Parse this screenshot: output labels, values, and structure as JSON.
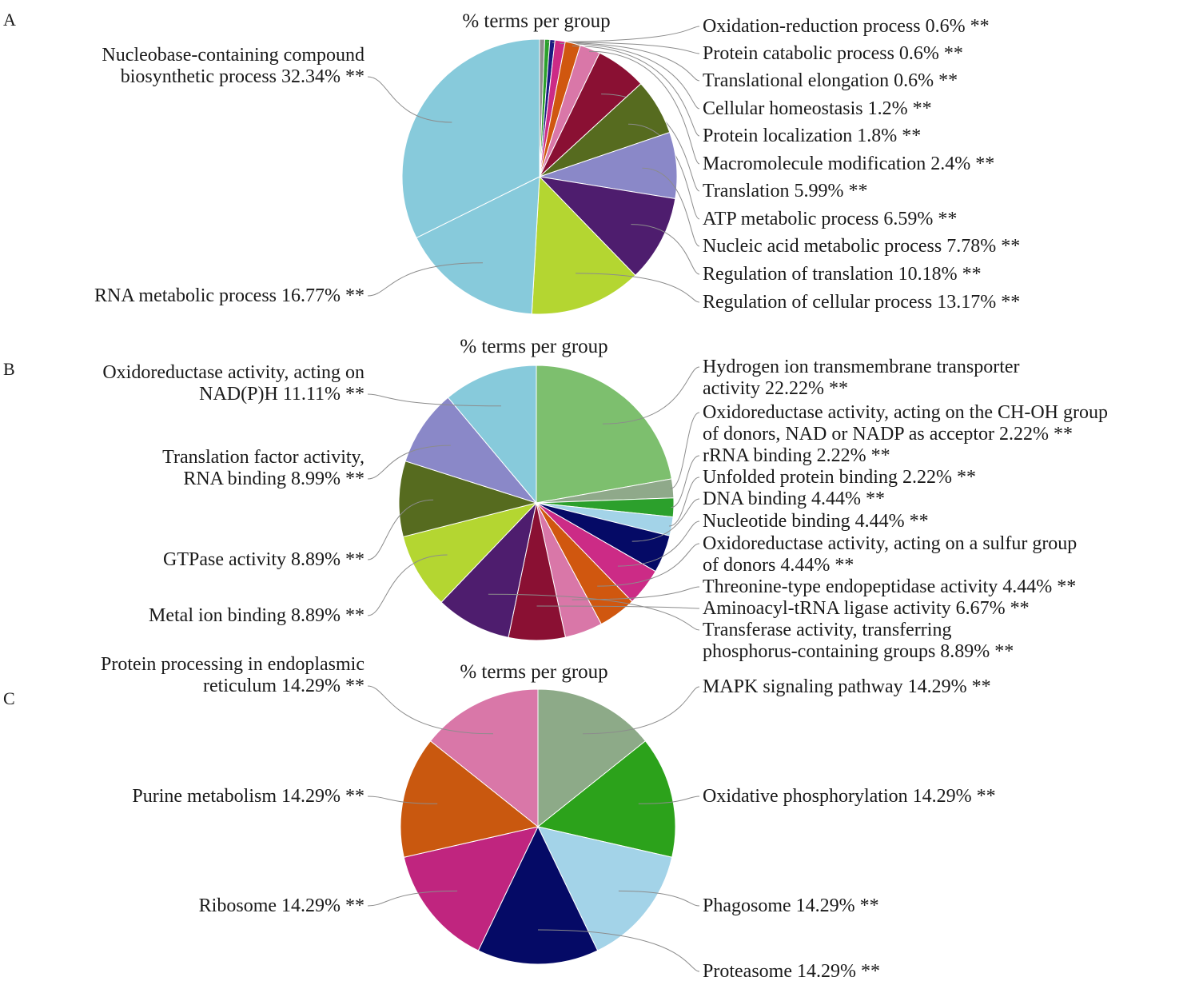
{
  "chart_data": [
    {
      "panel": "A",
      "type": "pie",
      "title": "% terms per group",
      "categories": [
        "Oxidation-reduction process",
        "Protein catabolic process",
        "Translational elongation",
        "Cellular homeostasis",
        "Protein localization",
        "Macromolecule modification",
        "Translation",
        "ATP metabolic process",
        "Nucleic acid metabolic process",
        "Regulation of translation",
        "Regulation of cellular process",
        "RNA metabolic process",
        "Nucleobase-containing compound biosynthetic process"
      ],
      "values": [
        0.6,
        0.6,
        0.6,
        1.2,
        1.8,
        2.4,
        5.99,
        6.59,
        7.78,
        10.18,
        13.17,
        16.77,
        32.34
      ],
      "colors": [
        "#8f8f8f",
        "#2ca02c",
        "#1a1a80",
        "#cc2b86",
        "#d0570f",
        "#d977a8",
        "#8a1033",
        "#566b1f",
        "#8a88c8",
        "#4e1d6e",
        "#b4d631",
        "#87cadb",
        "#87cadb"
      ],
      "labels": [
        [
          "Oxidation-reduction process 0.6% **"
        ],
        [
          "Protein catabolic process 0.6% **"
        ],
        [
          "Translational elongation 0.6% **"
        ],
        [
          "Cellular homeostasis 1.2% **"
        ],
        [
          "Protein localization 1.8% **"
        ],
        [
          "Macromolecule modification 2.4% **"
        ],
        [
          "Translation 5.99% **"
        ],
        [
          "ATP metabolic process 6.59% **"
        ],
        [
          "Nucleic acid metabolic process 7.78% **"
        ],
        [
          "Regulation of translation 10.18% **"
        ],
        [
          "Regulation of cellular process 13.17% **"
        ],
        [
          "RNA metabolic process 16.77% **"
        ],
        [
          "Nucleobase-containing compound",
          "biosynthetic process 32.34% **"
        ]
      ]
    },
    {
      "panel": "B",
      "type": "pie",
      "title": "% terms per group",
      "categories": [
        "Hydrogen ion transmembrane transporter activity",
        "Oxidoreductase activity, acting on the CH-OH group of donors, NAD or NADP as acceptor",
        "rRNA binding",
        "Unfolded protein binding",
        "DNA binding",
        "Nucleotide binding",
        "Oxidoreductase activity, acting on a sulfur group of donors",
        "Threonine-type endopeptidase activity",
        "Aminoacyl-tRNA ligase activity",
        "Transferase activity, transferring phosphorus-containing groups",
        "Metal ion binding",
        "GTPase activity",
        "Translation factor activity, RNA binding",
        "Oxidoreductase activity, acting on NAD(P)H"
      ],
      "values": [
        22.22,
        2.22,
        2.22,
        2.22,
        4.44,
        4.44,
        4.44,
        4.44,
        6.67,
        8.89,
        8.89,
        8.89,
        8.99,
        11.11
      ],
      "colors": [
        "#7dbf6e",
        "#8fa98a",
        "#2ca02c",
        "#a3d3e8",
        "#050a66",
        "#cc2b86",
        "#d0570f",
        "#d977a8",
        "#8a1033",
        "#4e1d6e",
        "#b4d631",
        "#566b1f",
        "#8a88c8",
        "#87cadb"
      ],
      "labels": [
        [
          "Hydrogen ion transmembrane transporter",
          "activity 22.22% **"
        ],
        [
          "Oxidoreductase activity, acting on the CH-OH group",
          "of donors, NAD or NADP as acceptor 2.22% **"
        ],
        [
          "rRNA binding 2.22% **"
        ],
        [
          "Unfolded protein binding 2.22% **"
        ],
        [
          "DNA binding 4.44% **"
        ],
        [
          "Nucleotide binding 4.44% **"
        ],
        [
          "Oxidoreductase activity, acting on a sulfur group",
          "of donors 4.44% **"
        ],
        [
          "Threonine-type endopeptidase activity 4.44% **"
        ],
        [
          "Aminoacyl-tRNA ligase activity 6.67% **"
        ],
        [
          "Transferase activity, transferring",
          "phosphorus-containing groups 8.89% **"
        ],
        [
          "Metal ion binding 8.89% **"
        ],
        [
          "GTPase activity 8.89% **"
        ],
        [
          "Translation factor activity,",
          "RNA binding 8.99% **"
        ],
        [
          "Oxidoreductase activity, acting on",
          "NAD(P)H 11.11% **"
        ]
      ]
    },
    {
      "panel": "C",
      "type": "pie",
      "title": "% terms per group",
      "categories": [
        "MAPK signaling pathway",
        "Oxidative phosphorylation",
        "Phagosome",
        "Proteasome",
        "Ribosome",
        "Purine metabolism",
        "Protein processing in endoplasmic reticulum"
      ],
      "values": [
        14.29,
        14.29,
        14.29,
        14.29,
        14.29,
        14.29,
        14.29
      ],
      "colors": [
        "#8daa88",
        "#2ca21b",
        "#a3d3e8",
        "#050a66",
        "#c0257f",
        "#c9580f",
        "#d977a8"
      ],
      "labels": [
        [
          "MAPK signaling pathway 14.29% **"
        ],
        [
          "Oxidative phosphorylation 14.29% **"
        ],
        [
          "Phagosome 14.29% **"
        ],
        [
          "Proteasome 14.29% **"
        ],
        [
          "Ribosome 14.29% **"
        ],
        [
          "Purine metabolism 14.29% **"
        ],
        [
          "Protein processing in endoplasmic",
          "reticulum 14.29% **"
        ]
      ]
    }
  ]
}
